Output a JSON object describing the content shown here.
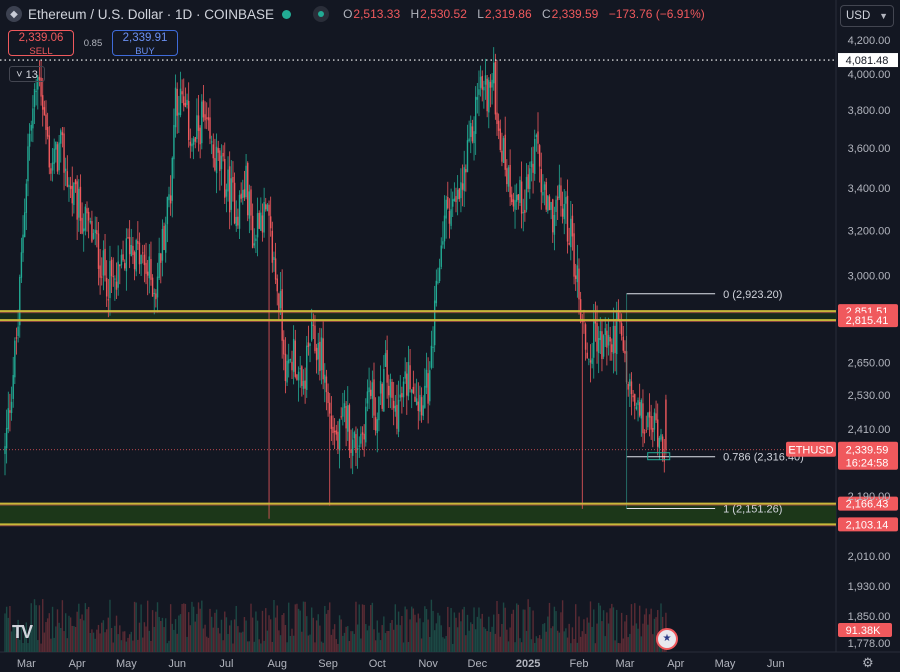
{
  "header": {
    "symbol_name": "Ethereum / U.S. Dollar · 1D · COINBASE",
    "open_label": "O",
    "open": "2,513.33",
    "high_label": "H",
    "high": "2,530.52",
    "low_label": "L",
    "low": "2,319.86",
    "close_label": "C",
    "close": "2,339.59",
    "change": "−173.76 (−6.91%)"
  },
  "trade": {
    "sell_price": "2,339.06",
    "sell_label": "SELL",
    "spread": "0.85",
    "buy_price": "2,339.91",
    "buy_label": "BUY"
  },
  "indicators_collapse_label": "13",
  "currency_label": "USD",
  "colors": {
    "background": "#131722",
    "up": "#22ab94",
    "down": "#f0595d",
    "level_line": "#c8b83a",
    "zone_fill": "#1e3d17",
    "volume_up": "#1c4844",
    "volume_down": "#5a2b34"
  },
  "chart_data": {
    "type": "candlestick",
    "title": "Ethereum / U.S. Dollar · 1D · COINBASE",
    "y_scale": "log",
    "ylim": [
      1778,
      4330
    ],
    "y_ticks": [
      "4,200.00",
      "4,000.00",
      "3,800.00",
      "3,600.00",
      "3,400.00",
      "3,200.00",
      "3,000.00",
      "2,650.00",
      "2,530.00",
      "2,410.00",
      "2,190.00",
      "2,010.00",
      "1,930.00",
      "1,850.00",
      "1,778.00"
    ],
    "y_tick_values": [
      4200,
      4000,
      3800,
      3600,
      3400,
      3200,
      3000,
      2650,
      2530,
      2410,
      2190,
      2010,
      1930,
      1850,
      1778
    ],
    "x_labels": [
      "Mar",
      "Apr",
      "May",
      "Jun",
      "Jul",
      "Aug",
      "Sep",
      "Oct",
      "Nov",
      "Dec",
      "2025",
      "Feb",
      "Mar",
      "Apr",
      "May",
      "Jun"
    ],
    "x_label_days": [
      13,
      44,
      74,
      105,
      135,
      166,
      197,
      227,
      258,
      288,
      319,
      350,
      378,
      409,
      439,
      470
    ],
    "last_data_day": 403,
    "anchors": [
      [
        0,
        2330
      ],
      [
        8,
        2800
      ],
      [
        14,
        3600
      ],
      [
        21,
        4030
      ],
      [
        24,
        3750
      ],
      [
        28,
        3500
      ],
      [
        34,
        3600
      ],
      [
        40,
        3380
      ],
      [
        48,
        3250
      ],
      [
        55,
        3150
      ],
      [
        61,
        3000
      ],
      [
        68,
        2950
      ],
      [
        76,
        3150
      ],
      [
        84,
        3050
      ],
      [
        92,
        2950
      ],
      [
        101,
        3400
      ],
      [
        104,
        3900
      ],
      [
        110,
        3780
      ],
      [
        115,
        3600
      ],
      [
        120,
        3760
      ],
      [
        126,
        3580
      ],
      [
        131,
        3500
      ],
      [
        137,
        3380
      ],
      [
        142,
        3300
      ],
      [
        147,
        3420
      ],
      [
        152,
        3140
      ],
      [
        155,
        3300
      ],
      [
        160,
        3240
      ],
      [
        164,
        3050
      ],
      [
        168,
        2860
      ],
      [
        172,
        2590
      ],
      [
        176,
        2700
      ],
      [
        181,
        2520
      ],
      [
        186,
        2740
      ],
      [
        193,
        2680
      ],
      [
        198,
        2450
      ],
      [
        203,
        2360
      ],
      [
        208,
        2470
      ],
      [
        212,
        2350
      ],
      [
        218,
        2400
      ],
      [
        222,
        2560
      ],
      [
        227,
        2440
      ],
      [
        232,
        2620
      ],
      [
        237,
        2460
      ],
      [
        242,
        2520
      ],
      [
        247,
        2620
      ],
      [
        252,
        2520
      ],
      [
        259,
        2560
      ],
      [
        263,
        2900
      ],
      [
        266,
        3150
      ],
      [
        270,
        3320
      ],
      [
        275,
        3300
      ],
      [
        279,
        3400
      ],
      [
        283,
        3580
      ],
      [
        286,
        3740
      ],
      [
        289,
        3950
      ],
      [
        293,
        3900
      ],
      [
        298,
        3950
      ],
      [
        302,
        3650
      ],
      [
        307,
        3450
      ],
      [
        312,
        3350
      ],
      [
        316,
        3350
      ],
      [
        321,
        3500
      ],
      [
        325,
        3600
      ],
      [
        328,
        3350
      ],
      [
        332,
        3250
      ],
      [
        337,
        3330
      ],
      [
        341,
        3300
      ],
      [
        345,
        3180
      ],
      [
        349,
        2980
      ],
      [
        352,
        2810
      ],
      [
        356,
        2650
      ],
      [
        360,
        2780
      ],
      [
        364,
        2700
      ],
      [
        367,
        2750
      ],
      [
        370,
        2700
      ],
      [
        373,
        2800
      ],
      [
        377,
        2690
      ],
      [
        380,
        2560
      ],
      [
        384,
        2480
      ],
      [
        390,
        2420
      ],
      [
        398,
        2420
      ],
      [
        403,
        2339.59
      ]
    ],
    "fib_levels": [
      {
        "ratio": "0",
        "price": 2923.2,
        "label": "0 (2,923.20)"
      },
      {
        "ratio": "0.786",
        "price": 2316.4,
        "label": "0.786 (2,316.40)"
      },
      {
        "ratio": "1",
        "price": 2151.26,
        "label": "1 (2,151.26)"
      }
    ],
    "horizontal_levels": [
      {
        "price": 4081.48,
        "label": "4,081.48",
        "style": "dotted"
      },
      {
        "price": 2851.51,
        "label": "2,851.51",
        "style": "solid"
      },
      {
        "price": 2815.41,
        "label": "2,815.41",
        "style": "solid"
      },
      {
        "price": 2166.43,
        "label": "2,166.43",
        "style": "solid"
      },
      {
        "price": 2103.14,
        "label": "2,103.14",
        "style": "solid"
      }
    ],
    "zones": [
      {
        "low": 2815.41,
        "high": 2851.51
      },
      {
        "low": 2103.14,
        "high": 2166.43
      }
    ],
    "last_price": {
      "symbol": "ETHUSD",
      "price": "2,339.59",
      "countdown": "16:24:58"
    },
    "volume_label": "91.38K"
  }
}
